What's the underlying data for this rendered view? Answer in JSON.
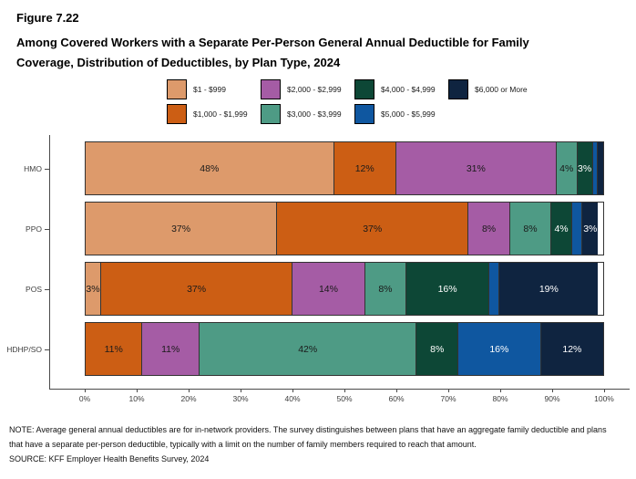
{
  "header": {
    "figure_label": "Figure 7.22",
    "title_line1": "Among Covered Workers with a Separate Per-Person General Annual Deductible for Family",
    "title_line2": "Coverage, Distribution of Deductibles, by Plan Type, 2024"
  },
  "chart_data": {
    "type": "bar",
    "stacked": true,
    "orientation": "horizontal",
    "categories": [
      "HMO",
      "PPO",
      "POS",
      "HDHP/SO"
    ],
    "series": [
      {
        "name": "$1 - $999",
        "color": "#DD9A6B",
        "text_color": "#1a1a1a",
        "values": [
          48,
          37,
          3,
          0
        ]
      },
      {
        "name": "$1,000 - $1,999",
        "color": "#CC5E14",
        "text_color": "#1a1a1a",
        "values": [
          12,
          37,
          37,
          11
        ]
      },
      {
        "name": "$2,000 - $2,999",
        "color": "#A55CA5",
        "text_color": "#1a1a1a",
        "values": [
          31,
          8,
          14,
          11
        ]
      },
      {
        "name": "$3,000 - $3,999",
        "color": "#4E9B85",
        "text_color": "#1a1a1a",
        "values": [
          4,
          8,
          8,
          42
        ]
      },
      {
        "name": "$4,000 - $4,999",
        "color": "#0D4736",
        "text_color": "#ffffff",
        "values": [
          3,
          4,
          16,
          8
        ]
      },
      {
        "name": "$5,000 - $5,999",
        "color": "#0F57A0",
        "text_color": "#ffffff",
        "values": [
          1,
          2,
          2,
          16
        ]
      },
      {
        "name": "$6,000 or More",
        "color": "#0F2440",
        "text_color": "#ffffff",
        "values": [
          1,
          3,
          19,
          12
        ]
      }
    ],
    "x_ticks": [
      "0%",
      "10%",
      "20%",
      "30%",
      "40%",
      "50%",
      "60%",
      "70%",
      "80%",
      "90%",
      "100%"
    ],
    "xlim": [
      0,
      100
    ],
    "grid": false,
    "legend_position": "top",
    "label_min_value": 3,
    "label_suffix": "%"
  },
  "footer": {
    "note": "NOTE: Average general annual deductibles are for in-network providers. The survey distinguishes between plans that have an aggregate family deductible and plans that have a separate per-person deductible, typically with a limit on the number of family members required to reach that amount.",
    "source": "SOURCE: KFF Employer Health Benefits Survey, 2024"
  }
}
